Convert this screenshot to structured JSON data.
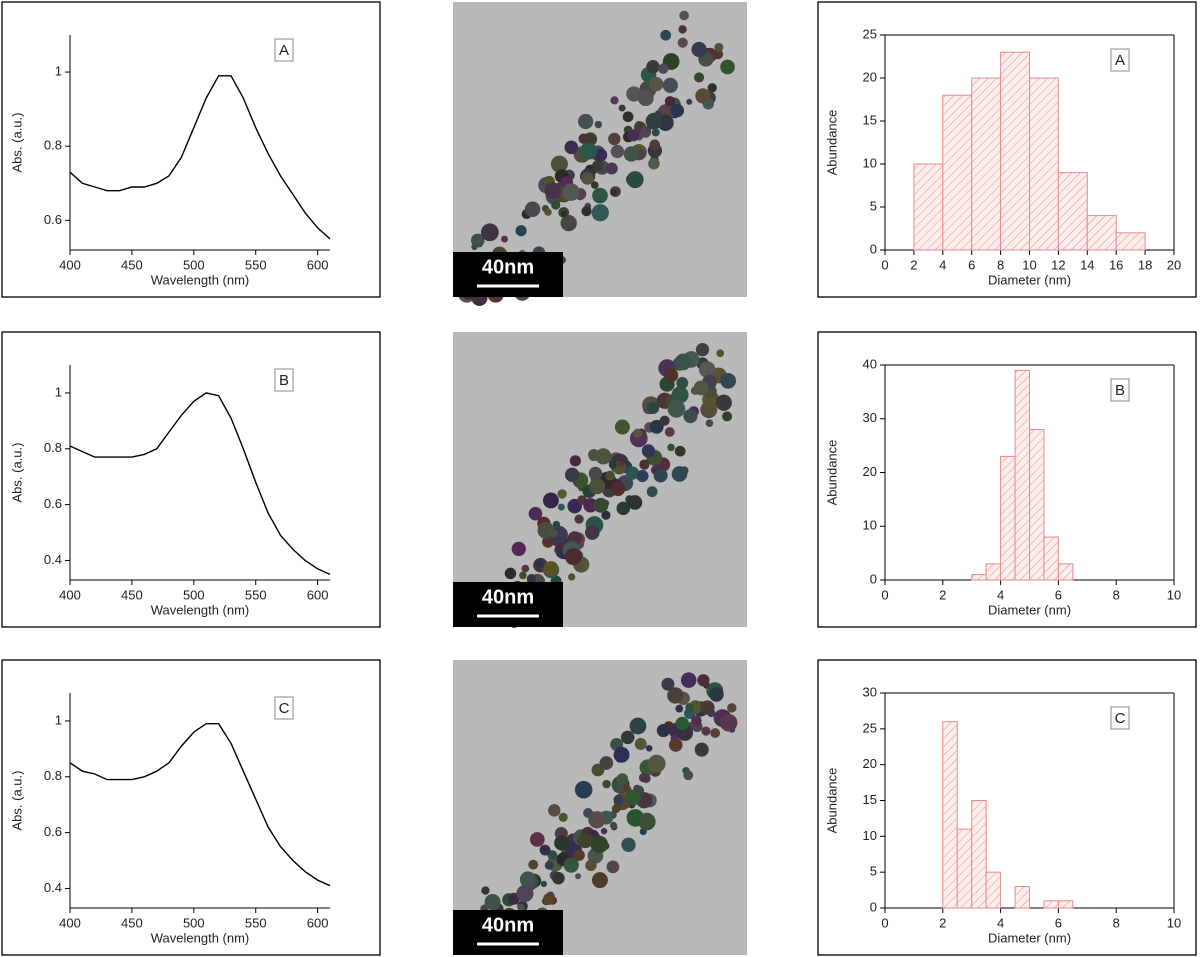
{
  "chart_data": [
    {
      "type": "line",
      "xlabel": "Wavelength (nm)",
      "ylabel": "Abs. (a.u.)",
      "annotation": "A",
      "color": "#000000",
      "x": [
        400,
        410,
        420,
        430,
        440,
        450,
        460,
        470,
        480,
        490,
        500,
        510,
        520,
        530,
        540,
        550,
        560,
        570,
        580,
        590,
        600,
        610
      ],
      "values": [
        0.73,
        0.7,
        0.69,
        0.68,
        0.68,
        0.69,
        0.69,
        0.7,
        0.72,
        0.77,
        0.85,
        0.93,
        0.99,
        0.99,
        0.93,
        0.85,
        0.78,
        0.72,
        0.67,
        0.62,
        0.58,
        0.55
      ],
      "xlim": [
        400,
        610
      ],
      "xticks": [
        400,
        450,
        500,
        550,
        600
      ],
      "ylim": [
        0.52,
        1.1
      ],
      "yticks": [
        0.6,
        0.8,
        1.0
      ]
    },
    {
      "type": "image",
      "scale_bar": "40nm"
    },
    {
      "type": "histogram",
      "xlabel": "Diameter (nm)",
      "ylabel": "Abundance",
      "annotation": "A",
      "color": "#e88a8a",
      "bins": [
        2,
        4,
        6,
        8,
        10,
        12,
        14,
        16,
        18
      ],
      "values": [
        10,
        18,
        20,
        23,
        20,
        9,
        4,
        2
      ],
      "xlim": [
        0,
        20
      ],
      "xticks": [
        0,
        2,
        4,
        6,
        8,
        10,
        12,
        14,
        16,
        18,
        20
      ],
      "ylim": [
        0,
        25
      ],
      "yticks": [
        0,
        5,
        10,
        15,
        20,
        25
      ]
    },
    {
      "type": "line",
      "xlabel": "Wavelength (nm)",
      "ylabel": "Abs. (a.u.)",
      "annotation": "B",
      "color": "#000000",
      "x": [
        400,
        410,
        420,
        430,
        440,
        450,
        460,
        470,
        480,
        490,
        500,
        510,
        520,
        530,
        540,
        550,
        560,
        570,
        580,
        590,
        600,
        610
      ],
      "values": [
        0.81,
        0.79,
        0.77,
        0.77,
        0.77,
        0.77,
        0.78,
        0.8,
        0.86,
        0.92,
        0.97,
        1.0,
        0.99,
        0.91,
        0.8,
        0.68,
        0.57,
        0.49,
        0.44,
        0.4,
        0.37,
        0.35
      ],
      "xlim": [
        400,
        610
      ],
      "xticks": [
        400,
        450,
        500,
        550,
        600
      ],
      "ylim": [
        0.33,
        1.1
      ],
      "yticks": [
        0.4,
        0.6,
        0.8,
        1.0
      ]
    },
    {
      "type": "image",
      "scale_bar": "40nm"
    },
    {
      "type": "histogram",
      "xlabel": "Diameter (nm)",
      "ylabel": "Abundance",
      "annotation": "B",
      "color": "#e88a8a",
      "bins": [
        3,
        3.5,
        4,
        4.5,
        5,
        5.5,
        6,
        6.5
      ],
      "values": [
        1,
        3,
        23,
        39,
        28,
        8,
        3
      ],
      "xlim": [
        0,
        10
      ],
      "xticks": [
        0,
        2,
        4,
        6,
        8,
        10
      ],
      "ylim": [
        0,
        40
      ],
      "yticks": [
        0,
        10,
        20,
        30,
        40
      ]
    },
    {
      "type": "line",
      "xlabel": "Wavelength (nm)",
      "ylabel": "Abs. (a.u.)",
      "annotation": "C",
      "color": "#000000",
      "x": [
        400,
        410,
        420,
        430,
        440,
        450,
        460,
        470,
        480,
        490,
        500,
        510,
        520,
        530,
        540,
        550,
        560,
        570,
        580,
        590,
        600,
        610
      ],
      "values": [
        0.85,
        0.82,
        0.81,
        0.79,
        0.79,
        0.79,
        0.8,
        0.82,
        0.85,
        0.91,
        0.96,
        0.99,
        0.99,
        0.92,
        0.82,
        0.72,
        0.62,
        0.55,
        0.5,
        0.46,
        0.43,
        0.41
      ],
      "xlim": [
        400,
        610
      ],
      "xticks": [
        400,
        450,
        500,
        550,
        600
      ],
      "ylim": [
        0.33,
        1.1
      ],
      "yticks": [
        0.4,
        0.6,
        0.8,
        1.0
      ]
    },
    {
      "type": "image",
      "scale_bar": "40nm"
    },
    {
      "type": "histogram",
      "xlabel": "Diameter (nm)",
      "ylabel": "Abundance",
      "annotation": "C",
      "color": "#e88a8a",
      "bins": [
        2,
        2.5,
        3,
        3.5,
        4,
        4.5,
        5,
        5.5,
        6,
        6.5
      ],
      "values": [
        26,
        11,
        15,
        5,
        0,
        3,
        0,
        1,
        1
      ],
      "xlim": [
        0,
        10
      ],
      "xticks": [
        0,
        2,
        4,
        6,
        8,
        10
      ],
      "ylim": [
        0,
        30
      ],
      "yticks": [
        0,
        5,
        10,
        15,
        20,
        25,
        30
      ]
    }
  ]
}
